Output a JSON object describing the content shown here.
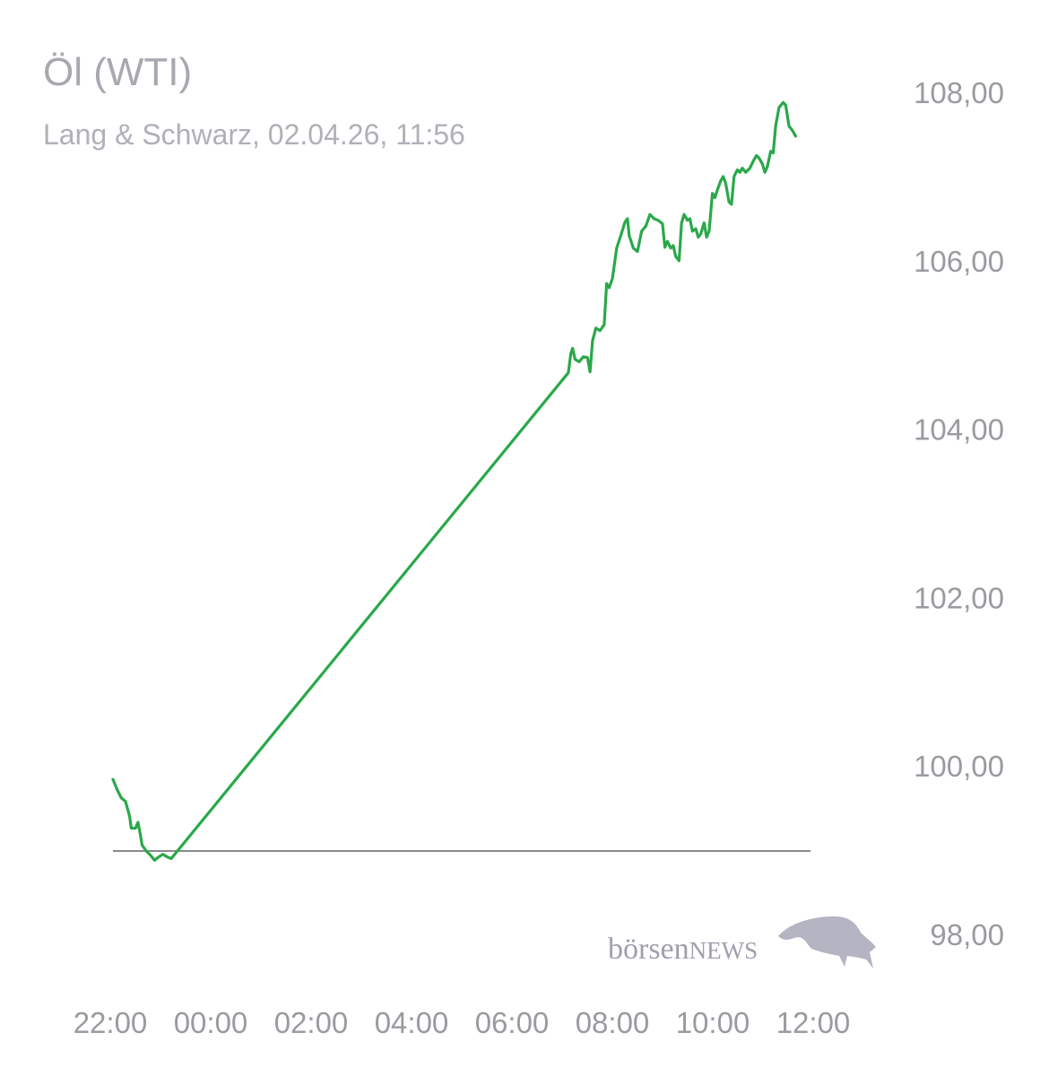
{
  "header": {
    "title": "Öl (WTI)",
    "subtitle": "Lang & Schwarz, 02.04.26, 11:56"
  },
  "logo": {
    "text_lower": "börsen",
    "text_upper": "NEWS",
    "icon": "bull-icon"
  },
  "colors": {
    "line": "#2aa84a",
    "baseline": "#6f6f6f",
    "text": "#9a9aa0",
    "logo": "#9f9fae"
  },
  "chart_data": {
    "type": "line",
    "title": "Öl (WTI)",
    "subtitle": "Lang & Schwarz, 02.04.26, 11:56",
    "xlabel": "",
    "ylabel": "",
    "x_ticks": [
      "22:00",
      "00:00",
      "02:00",
      "04:00",
      "06:00",
      "08:00",
      "10:00",
      "12:00"
    ],
    "y_ticks": [
      "108,00",
      "106,00",
      "104,00",
      "102,00",
      "100,00",
      "98,00"
    ],
    "ylim": [
      98,
      108
    ],
    "xlim": [
      "22:00",
      "12:00"
    ],
    "reference_line": 98.99,
    "grid": false,
    "series": [
      {
        "values": [
          [
            "22:00",
            99.84
          ],
          [
            "22:05",
            99.72
          ],
          [
            "22:10",
            99.62
          ],
          [
            "22:15",
            99.58
          ],
          [
            "22:20",
            99.4
          ],
          [
            "22:22",
            99.26
          ],
          [
            "22:27",
            99.26
          ],
          [
            "22:30",
            99.33
          ],
          [
            "22:33",
            99.18
          ],
          [
            "22:35",
            99.06
          ],
          [
            "22:40",
            98.99
          ],
          [
            "22:45",
            98.94
          ],
          [
            "22:50",
            98.88
          ],
          [
            "22:55",
            98.92
          ],
          [
            "23:00",
            98.95
          ],
          [
            "23:05",
            98.92
          ],
          [
            "23:10",
            98.9
          ],
          [
            "23:15",
            98.96
          ],
          [
            "07:07",
            104.67
          ],
          [
            "07:10",
            104.9
          ],
          [
            "07:12",
            104.96
          ],
          [
            "07:15",
            104.83
          ],
          [
            "07:20",
            104.8
          ],
          [
            "07:25",
            104.86
          ],
          [
            "07:30",
            104.85
          ],
          [
            "07:33",
            104.68
          ],
          [
            "07:36",
            105.05
          ],
          [
            "07:40",
            105.2
          ],
          [
            "07:45",
            105.17
          ],
          [
            "07:50",
            105.24
          ],
          [
            "07:53",
            105.73
          ],
          [
            "07:56",
            105.68
          ],
          [
            "08:00",
            105.79
          ],
          [
            "08:05",
            106.15
          ],
          [
            "08:10",
            106.3
          ],
          [
            "08:15",
            106.46
          ],
          [
            "08:18",
            106.5
          ],
          [
            "08:20",
            106.3
          ],
          [
            "08:25",
            106.15
          ],
          [
            "08:30",
            106.11
          ],
          [
            "08:35",
            106.35
          ],
          [
            "08:40",
            106.41
          ],
          [
            "08:45",
            106.55
          ],
          [
            "08:50",
            106.5
          ],
          [
            "08:55",
            106.48
          ],
          [
            "09:00",
            106.44
          ],
          [
            "09:03",
            106.16
          ],
          [
            "09:06",
            106.23
          ],
          [
            "09:10",
            106.15
          ],
          [
            "09:13",
            106.18
          ],
          [
            "09:16",
            106.05
          ],
          [
            "09:20",
            106.0
          ],
          [
            "09:23",
            106.45
          ],
          [
            "09:26",
            106.55
          ],
          [
            "09:30",
            106.48
          ],
          [
            "09:33",
            106.5
          ],
          [
            "09:36",
            106.35
          ],
          [
            "09:40",
            106.38
          ],
          [
            "09:43",
            106.28
          ],
          [
            "09:46",
            106.32
          ],
          [
            "09:50",
            106.45
          ],
          [
            "09:53",
            106.28
          ],
          [
            "09:56",
            106.35
          ],
          [
            "10:00",
            106.8
          ],
          [
            "10:03",
            106.75
          ],
          [
            "10:06",
            106.84
          ],
          [
            "10:10",
            106.95
          ],
          [
            "10:13",
            107.0
          ],
          [
            "10:16",
            106.92
          ],
          [
            "10:20",
            106.7
          ],
          [
            "10:23",
            106.67
          ],
          [
            "10:26",
            107.0
          ],
          [
            "10:30",
            107.08
          ],
          [
            "10:33",
            107.05
          ],
          [
            "10:36",
            107.1
          ],
          [
            "10:40",
            107.05
          ],
          [
            "10:45",
            107.1
          ],
          [
            "10:50",
            107.2
          ],
          [
            "10:53",
            107.25
          ],
          [
            "10:56",
            107.22
          ],
          [
            "11:00",
            107.15
          ],
          [
            "11:03",
            107.05
          ],
          [
            "11:06",
            107.12
          ],
          [
            "11:10",
            107.3
          ],
          [
            "11:13",
            107.28
          ],
          [
            "11:16",
            107.6
          ],
          [
            "11:20",
            107.82
          ],
          [
            "11:25",
            107.88
          ],
          [
            "11:28",
            107.85
          ],
          [
            "11:32",
            107.6
          ],
          [
            "11:36",
            107.55
          ],
          [
            "11:40",
            107.48
          ]
        ]
      }
    ]
  }
}
